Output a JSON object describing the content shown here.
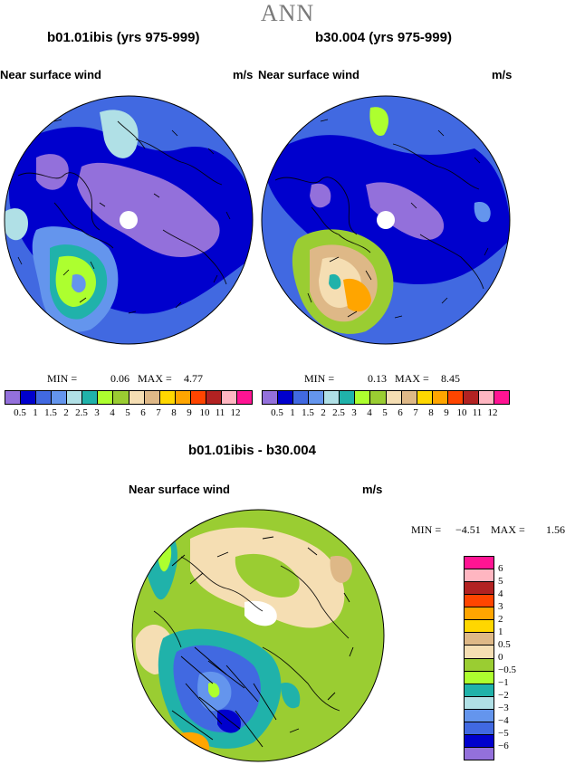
{
  "header": {
    "title": "ANN"
  },
  "panels": [
    {
      "title": "b01.01ibis (yrs 975-999)",
      "field": "Near surface wind",
      "units": "m/s",
      "min_label": "MIN =",
      "min": "0.06",
      "max_label": "MAX =",
      "max": "4.77"
    },
    {
      "title": "b30.004 (yrs 975-999)",
      "field": "Near surface wind",
      "units": "m/s",
      "min_label": "MIN =",
      "min": "0.13",
      "max_label": "MAX =",
      "max": "8.45"
    }
  ],
  "colorbar_h": {
    "labels": [
      "0.5",
      "1",
      "1.5",
      "2",
      "2.5",
      "3",
      "4",
      "5",
      "6",
      "7",
      "8",
      "9",
      "10",
      "11",
      "12"
    ],
    "colors": [
      "#9370db",
      "#0000cd",
      "#4169e1",
      "#6495ed",
      "#b0e0e6",
      "#20b2aa",
      "#adff2f",
      "#9acd32",
      "#f5deb3",
      "#deb887",
      "#ffd700",
      "#ffa500",
      "#ff4500",
      "#b22222",
      "#ffb6c1",
      "#ff1493"
    ]
  },
  "diff": {
    "title": "b01.01ibis - b30.004",
    "field": "Near surface wind",
    "units": "m/s",
    "min_label": "MIN =",
    "min": "−4.51",
    "max_label": "MAX =",
    "max": "1.56"
  },
  "colorbar_v": {
    "labels": [
      "6",
      "5",
      "4",
      "3",
      "2",
      "1",
      "0.5",
      "0",
      "−0.5",
      "−1",
      "−2",
      "−3",
      "−4",
      "−5",
      "−6"
    ],
    "colors": [
      "#ff1493",
      "#ffb6c1",
      "#b22222",
      "#ff4500",
      "#ffa500",
      "#ffd700",
      "#deb887",
      "#f5deb3",
      "#9acd32",
      "#adff2f",
      "#20b2aa",
      "#b0e0e6",
      "#6495ed",
      "#4169e1",
      "#0000cd",
      "#9370db"
    ]
  }
}
